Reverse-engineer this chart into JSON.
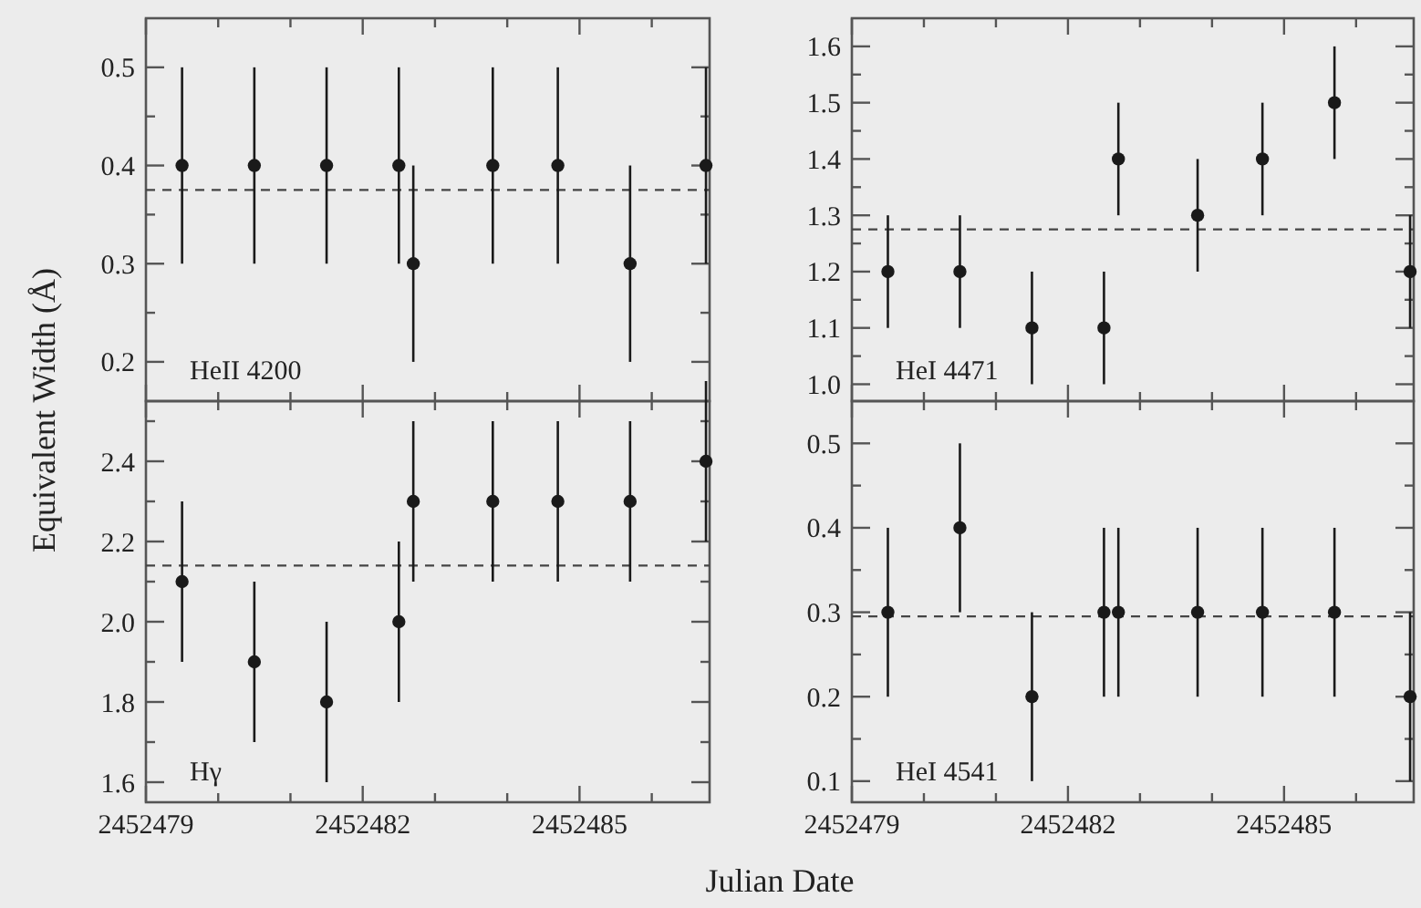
{
  "chart_data": [
    {
      "type": "scatter",
      "ylabel": "Equivalent Width (Å)",
      "annotations": [
        "HeII 4200"
      ],
      "marker": "circle",
      "color": "#1a1a1a",
      "tick_labels": "y",
      "x": [
        2452479.5,
        2452480.5,
        2452481.5,
        2452482.5,
        2452482.7,
        2452483.8,
        2452484.7,
        2452485.7,
        2452486.75
      ],
      "values": [
        0.4,
        0.4,
        0.4,
        0.4,
        0.3,
        0.4,
        0.4,
        0.3,
        0.4
      ],
      "errors": [
        0.1,
        0.1,
        0.1,
        0.1,
        0.1,
        0.1,
        0.1,
        0.1,
        0.1
      ],
      "xlim": [
        2452479,
        2452486.8
      ],
      "xticks": [
        2452479,
        {
          "value": 2452480,
          "label": null
        },
        {
          "value": 2452481,
          "label": null
        },
        2452482,
        {
          "value": 2452483,
          "label": null
        },
        {
          "value": 2452484,
          "label": null
        },
        2452485,
        {
          "value": 2452486,
          "label": null
        }
      ],
      "ylim": [
        0.16,
        0.55
      ],
      "yticks": [
        {
          "value": 0.2,
          "label": "0.2"
        },
        {
          "value": 0.25,
          "label": null
        },
        {
          "value": 0.3,
          "label": "0.3"
        },
        {
          "value": 0.35,
          "label": null
        },
        {
          "value": 0.4,
          "label": "0.4"
        },
        {
          "value": 0.45,
          "label": null
        },
        {
          "value": 0.5,
          "label": "0.5"
        }
      ],
      "ref_lines": [
        {
          "axis": "y",
          "value": 0.375,
          "line_style": "dashed"
        }
      ]
    },
    {
      "type": "scatter",
      "annotations": [
        "HeI 4471"
      ],
      "marker": "circle",
      "color": "#1a1a1a",
      "tick_labels": "y",
      "x": [
        2452479.5,
        2452480.5,
        2452481.5,
        2452482.5,
        2452482.7,
        2452483.8,
        2452484.7,
        2452485.7,
        2452486.75
      ],
      "values": [
        1.2,
        1.2,
        1.1,
        1.1,
        1.4,
        1.3,
        1.4,
        1.5,
        1.2
      ],
      "errors": [
        0.1,
        0.1,
        0.1,
        0.1,
        0.1,
        0.1,
        0.1,
        0.1,
        0.1
      ],
      "xlim": [
        2452479,
        2452486.8
      ],
      "xticks": [
        2452479,
        {
          "value": 2452480,
          "label": null
        },
        {
          "value": 2452481,
          "label": null
        },
        2452482,
        {
          "value": 2452483,
          "label": null
        },
        {
          "value": 2452484,
          "label": null
        },
        2452485,
        {
          "value": 2452486,
          "label": null
        }
      ],
      "ylim": [
        0.97,
        1.65
      ],
      "yticks": [
        {
          "value": 1.0,
          "label": "1.0"
        },
        {
          "value": 1.05,
          "label": null
        },
        1.1,
        {
          "value": 1.15,
          "label": null
        },
        1.2,
        {
          "value": 1.25,
          "label": null
        },
        1.3,
        {
          "value": 1.35,
          "label": null
        },
        1.4,
        {
          "value": 1.45,
          "label": null
        },
        1.5,
        {
          "value": 1.55,
          "label": null
        },
        1.6
      ],
      "ref_lines": [
        {
          "axis": "y",
          "value": 1.275,
          "line_style": "dashed"
        }
      ]
    },
    {
      "type": "scatter",
      "annotations": [
        "Hγ"
      ],
      "marker": "circle",
      "color": "#1a1a1a",
      "x": [
        2452479.5,
        2452480.5,
        2452481.5,
        2452482.5,
        2452482.7,
        2452483.8,
        2452484.7,
        2452485.7,
        2452486.75
      ],
      "values": [
        2.1,
        1.9,
        1.8,
        2.0,
        2.3,
        2.3,
        2.3,
        2.3,
        2.4
      ],
      "errors": [
        0.2,
        0.2,
        0.2,
        0.2,
        0.2,
        0.2,
        0.2,
        0.2,
        0.2
      ],
      "xlim": [
        2452479,
        2452486.8
      ],
      "xticks": [
        2452479,
        {
          "value": 2452480,
          "label": null
        },
        {
          "value": 2452481,
          "label": null
        },
        2452482,
        {
          "value": 2452483,
          "label": null
        },
        {
          "value": 2452484,
          "label": null
        },
        2452485,
        {
          "value": 2452486,
          "label": null
        }
      ],
      "ylim": [
        1.55,
        2.55
      ],
      "yticks": [
        1.6,
        {
          "value": 1.7,
          "label": null
        },
        1.8,
        {
          "value": 1.9,
          "label": null
        },
        {
          "value": 2.0,
          "label": "2.0"
        },
        {
          "value": 2.1,
          "label": null
        },
        2.2,
        {
          "value": 2.3,
          "label": null
        },
        2.4,
        {
          "value": 2.5,
          "label": null
        }
      ],
      "ref_lines": [
        {
          "axis": "y",
          "value": 2.14,
          "line_style": "dashed"
        }
      ]
    },
    {
      "type": "scatter",
      "xlabel": "Julian Date",
      "annotations": [
        "HeI 4541"
      ],
      "marker": "circle",
      "color": "#1a1a1a",
      "x": [
        2452479.5,
        2452480.5,
        2452481.5,
        2452482.5,
        2452482.7,
        2452483.8,
        2452484.7,
        2452485.7,
        2452486.75
      ],
      "values": [
        0.3,
        0.4,
        0.2,
        0.3,
        0.3,
        0.3,
        0.3,
        0.3,
        0.2
      ],
      "errors": [
        0.1,
        0.1,
        0.1,
        0.1,
        0.1,
        0.1,
        0.1,
        0.1,
        0.1
      ],
      "xlim": [
        2452479,
        2452486.8
      ],
      "xticks": [
        2452479,
        {
          "value": 2452480,
          "label": null
        },
        {
          "value": 2452481,
          "label": null
        },
        2452482,
        {
          "value": 2452483,
          "label": null
        },
        {
          "value": 2452484,
          "label": null
        },
        2452485,
        {
          "value": 2452486,
          "label": null
        }
      ],
      "ylim": [
        0.075,
        0.55
      ],
      "yticks": [
        0.1,
        {
          "value": 0.15,
          "label": null
        },
        0.2,
        {
          "value": 0.25,
          "label": null
        },
        0.3,
        {
          "value": 0.35,
          "label": null
        },
        0.4,
        {
          "value": 0.45,
          "label": null
        },
        0.5
      ],
      "ref_lines": [
        {
          "axis": "y",
          "value": 0.295,
          "line_style": "dashed"
        }
      ]
    }
  ]
}
